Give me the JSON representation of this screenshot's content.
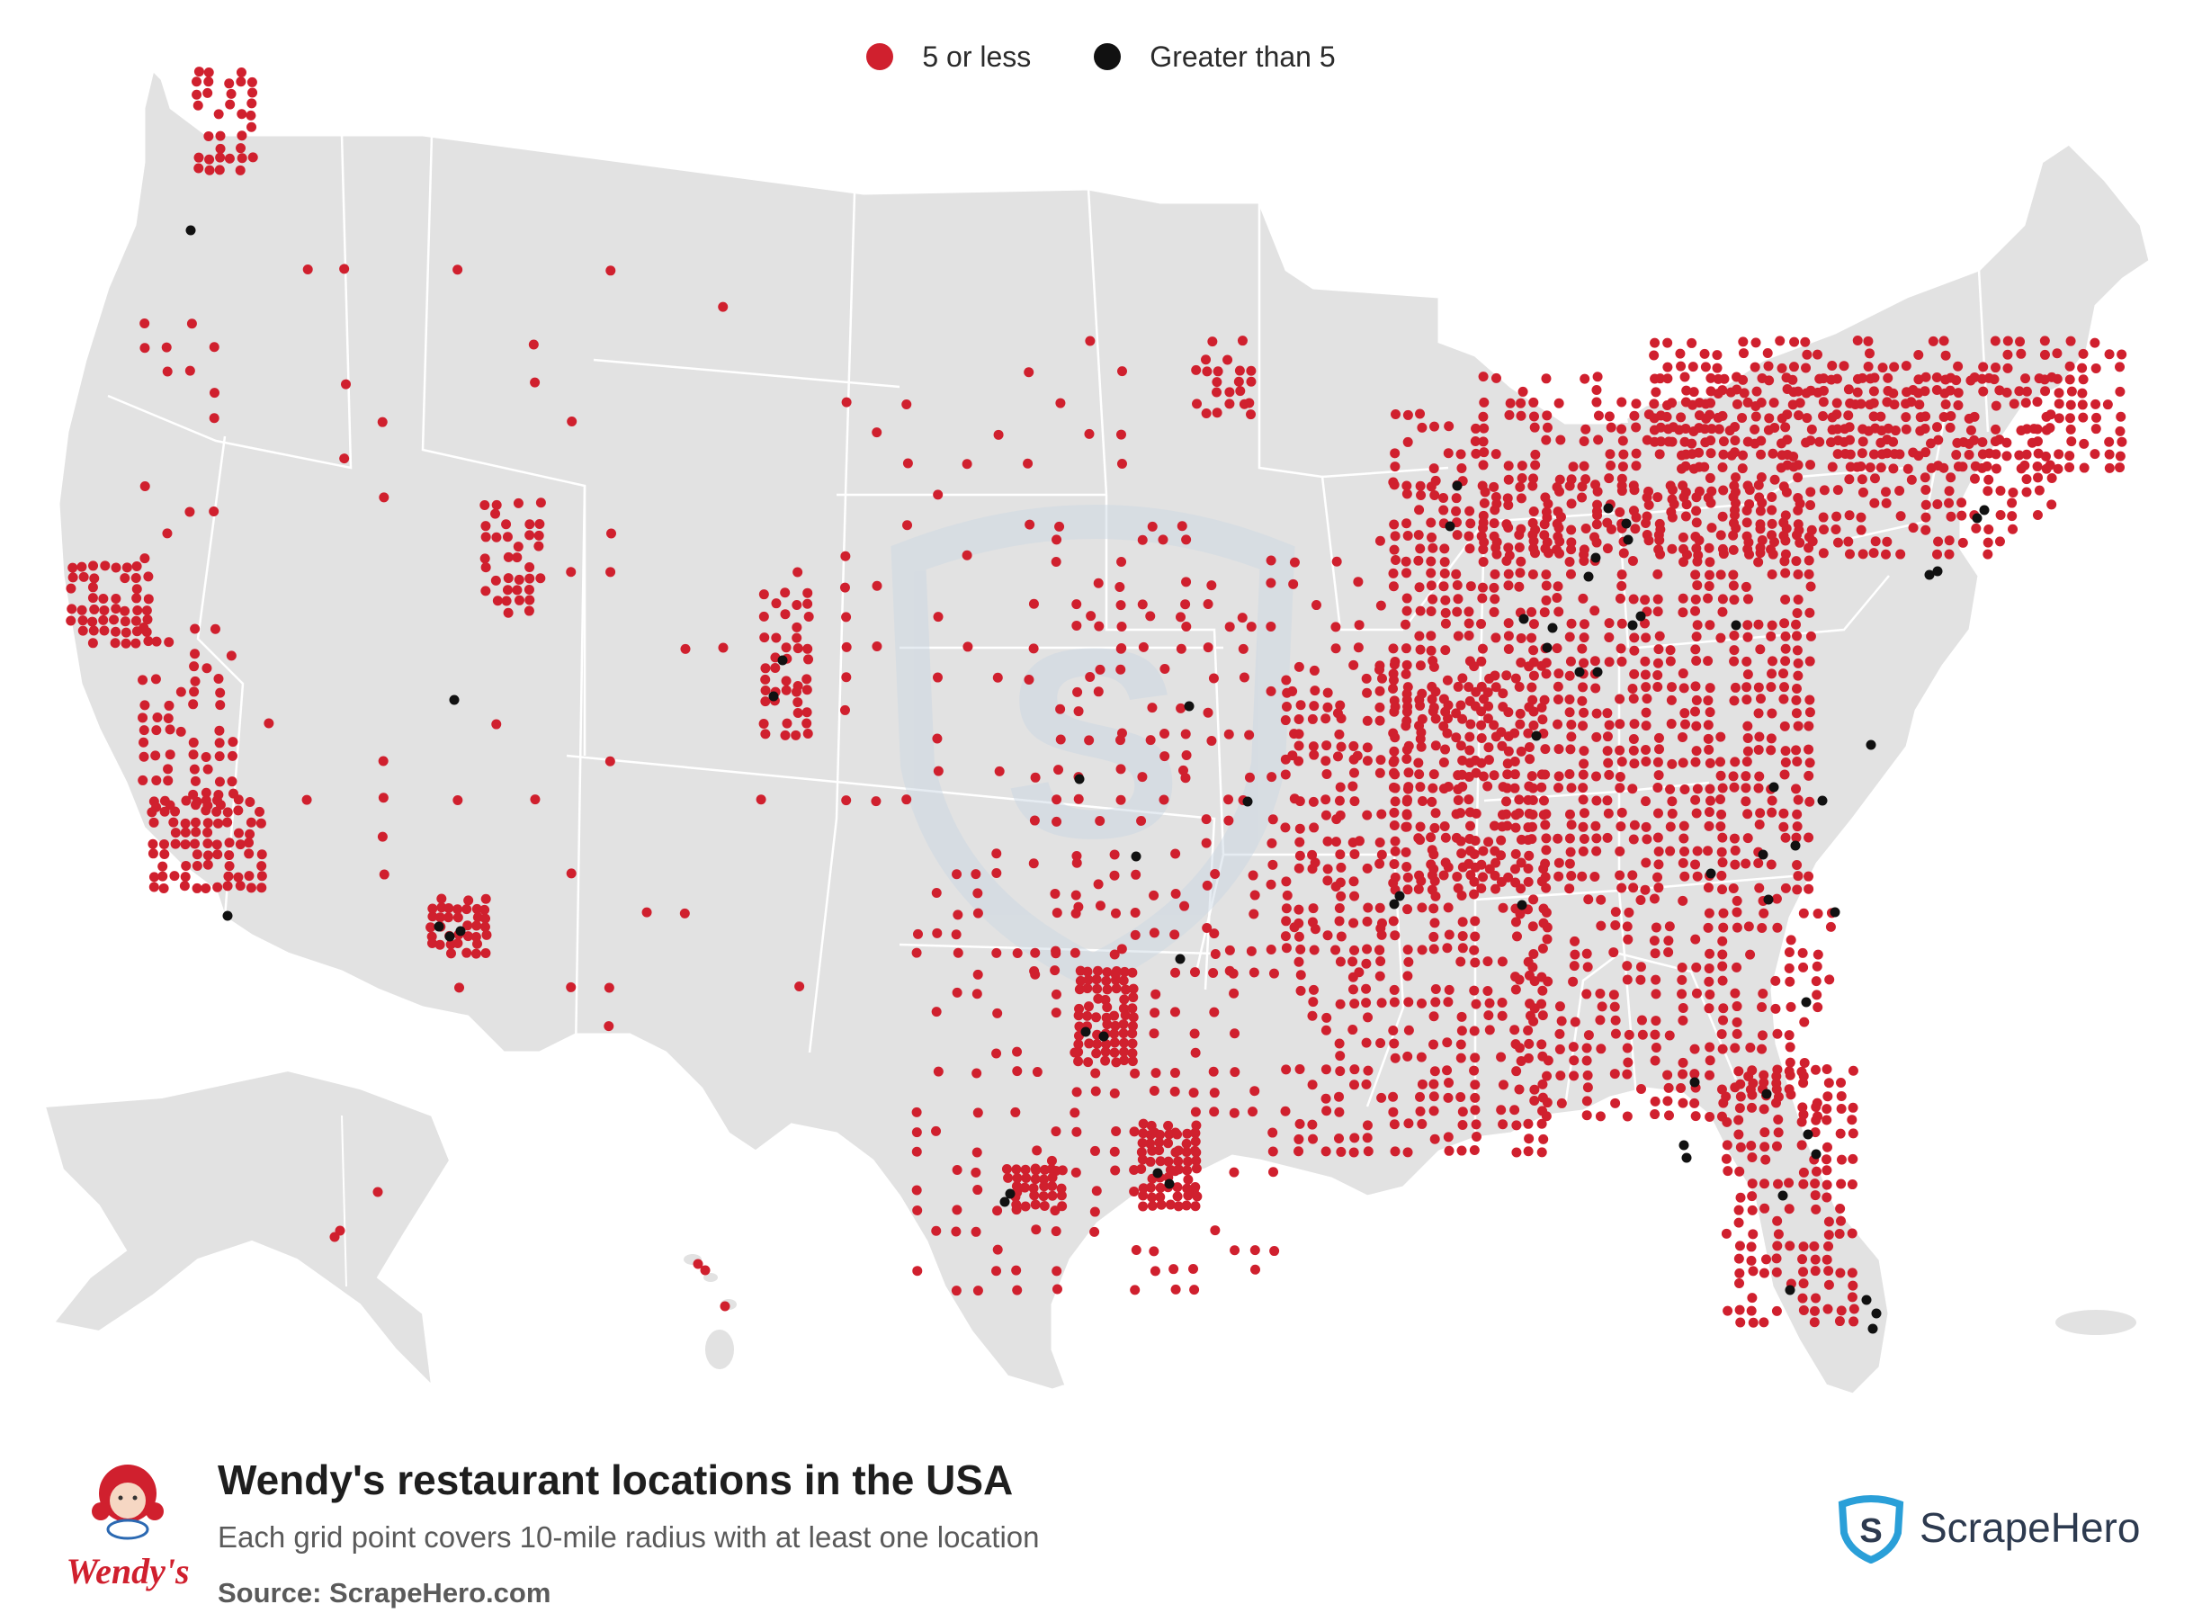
{
  "legend": [
    {
      "label": "5 or less",
      "color": "#d0202e"
    },
    {
      "label": "Greater than 5",
      "color": "#111111"
    }
  ],
  "map": {
    "land_color": "#e2e2e2",
    "border_color": "#ffffff",
    "low_color": "#d0202e",
    "high_color": "#111111"
  },
  "footer": {
    "title": "Wendy's restaurant locations in the USA",
    "subtitle": "Each grid point covers 10-mile radius with at least one location",
    "source": "Source: ScrapeHero.com",
    "wendys_logo_text": "Wendy's",
    "scrapehero_name": "ScrapeHero"
  }
}
